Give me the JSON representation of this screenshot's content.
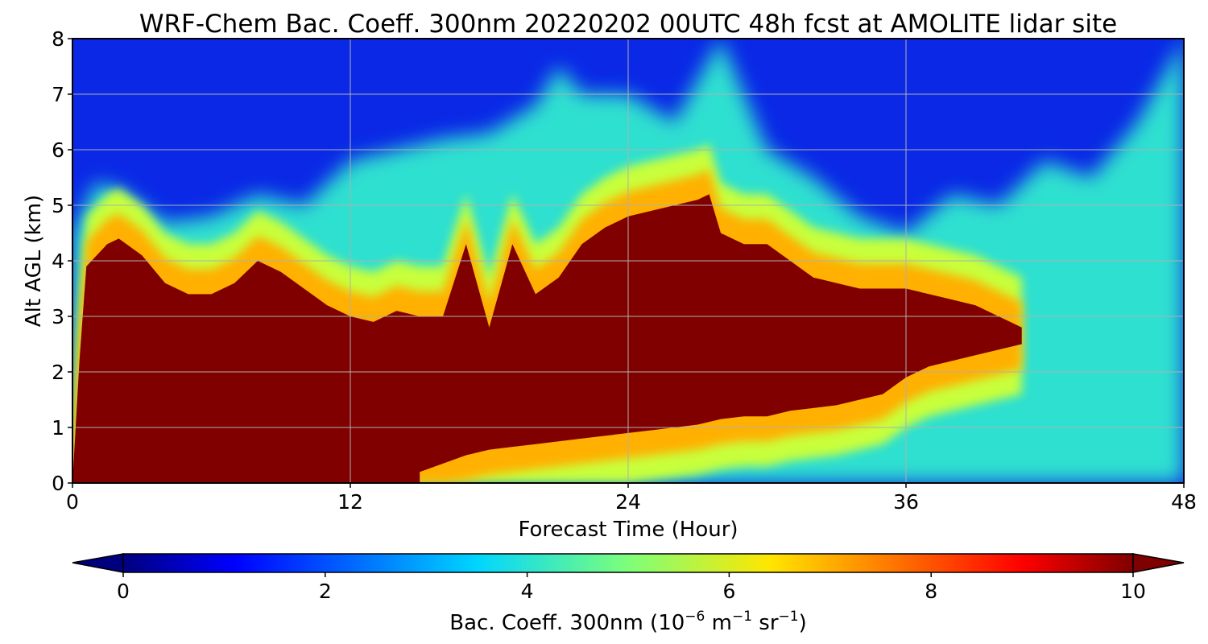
{
  "chart_data": {
    "type": "heatmap",
    "title": "WRF-Chem Bac. Coeff. 300nm  20220202 00UTC 48h fcst at AMOLITE lidar site",
    "xlabel": "Forecast Time (Hour)",
    "ylabel": "Alt AGL (km)",
    "xlim": [
      0,
      48
    ],
    "ylim": [
      0,
      8
    ],
    "xticks": [
      0,
      12,
      24,
      36,
      48
    ],
    "yticks": [
      0,
      1,
      2,
      3,
      4,
      5,
      6,
      7,
      8
    ],
    "grid": true,
    "colormap": "jet",
    "colorbar": {
      "orientation": "horizontal",
      "position": "bottom",
      "label_main": "Bac. Coeff. 300nm  (10",
      "label_exp1": "−6",
      "label_mid": " m",
      "label_exp2": "−1",
      "label_mid2": " sr",
      "label_exp3": "−1",
      "label_end": ")",
      "vmin": 0,
      "vmax": 10,
      "ticks": [
        0,
        2,
        4,
        6,
        8,
        10
      ],
      "extend": "both"
    },
    "plume_top_km": {
      "hours": [
        0,
        0.3,
        0.6,
        1.5,
        2,
        3,
        4,
        5,
        6,
        7,
        8,
        9,
        10,
        11,
        12,
        13,
        14,
        15,
        16,
        17,
        18,
        19,
        20,
        21,
        22,
        23,
        24,
        25,
        26,
        27,
        27.5,
        28,
        29,
        30,
        31,
        32,
        33,
        34,
        35,
        36,
        37,
        38,
        39,
        40,
        41
      ],
      "values": [
        0,
        2.2,
        3.9,
        4.3,
        4.4,
        4.1,
        3.6,
        3.4,
        3.4,
        3.6,
        4.0,
        3.8,
        3.5,
        3.2,
        3.0,
        2.9,
        3.1,
        3.0,
        3.0,
        4.3,
        2.8,
        4.3,
        3.4,
        3.7,
        4.3,
        4.6,
        4.8,
        4.9,
        5.0,
        5.1,
        5.2,
        4.5,
        4.3,
        4.3,
        4.0,
        3.7,
        3.6,
        3.5,
        3.5,
        3.5,
        3.4,
        3.3,
        3.2,
        3.0,
        2.8
      ]
    },
    "plume_bottom_km": {
      "hours": [
        41,
        40,
        39,
        38,
        37,
        36,
        35,
        34,
        33,
        32,
        31,
        30,
        29,
        28,
        27,
        26,
        25,
        24,
        23,
        22,
        21,
        20,
        19,
        18,
        17,
        16,
        15
      ],
      "values": [
        2.5,
        2.4,
        2.3,
        2.2,
        2.1,
        1.9,
        1.6,
        1.5,
        1.4,
        1.35,
        1.3,
        1.2,
        1.2,
        1.15,
        1.05,
        1.0,
        0.95,
        0.9,
        0.85,
        0.8,
        0.75,
        0.7,
        0.65,
        0.6,
        0.5,
        0.35,
        0.2
      ]
    },
    "aerosol_layer_top_km": {
      "hours": [
        0,
        1,
        2,
        4,
        6,
        8,
        10,
        12,
        14,
        16,
        18,
        20,
        21,
        22,
        24,
        26,
        28,
        30,
        32,
        34,
        36,
        38,
        40,
        42,
        44,
        46,
        48
      ],
      "values": [
        4.5,
        5.4,
        5.3,
        4.7,
        4.8,
        5.2,
        5.0,
        5.8,
        6.0,
        6.2,
        6.3,
        6.8,
        7.5,
        7.0,
        7.0,
        6.5,
        8.0,
        6.0,
        5.5,
        4.8,
        4.5,
        5.2,
        5.0,
        5.8,
        5.5,
        6.5,
        8.0
      ]
    }
  }
}
